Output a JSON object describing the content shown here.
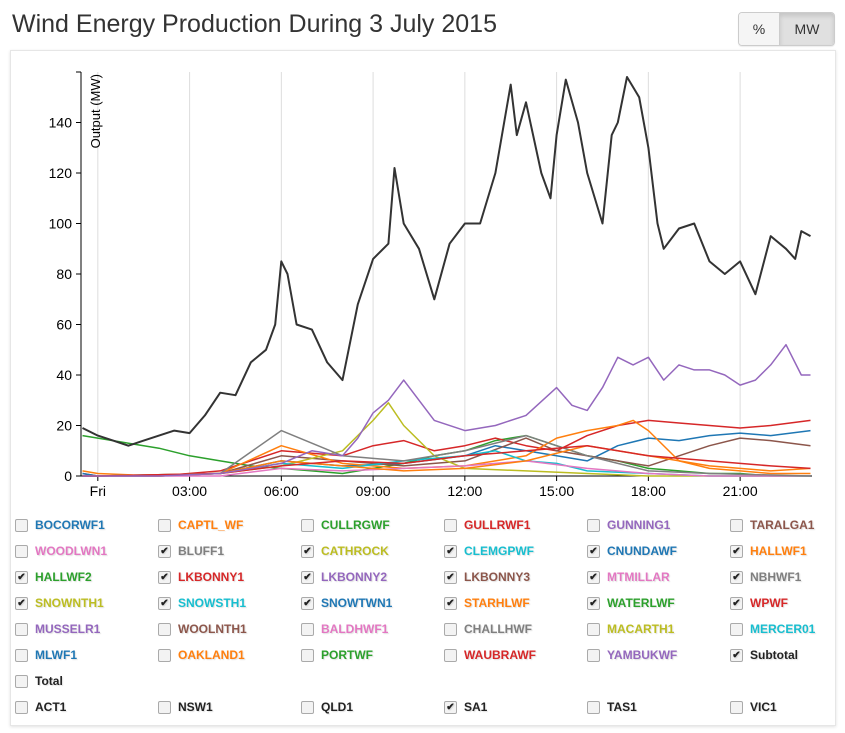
{
  "title": "Wind Energy Production During 3 July 2015",
  "units_toggle": {
    "percent": "%",
    "mw": "MW",
    "selected": "MW"
  },
  "chart_data": {
    "type": "line",
    "ylabel": "Output (MW)",
    "ylim": [
      0,
      160
    ],
    "xlim_hours": [
      -0.55,
      23.35
    ],
    "yticks": [
      0,
      20,
      40,
      60,
      80,
      100,
      120,
      140
    ],
    "xticks": [
      {
        "h": 0,
        "label": "Fri"
      },
      {
        "h": 3,
        "label": "03:00"
      },
      {
        "h": 6,
        "label": "06:00"
      },
      {
        "h": 9,
        "label": "09:00"
      },
      {
        "h": 12,
        "label": "12:00"
      },
      {
        "h": 15,
        "label": "15:00"
      },
      {
        "h": 18,
        "label": "18:00"
      },
      {
        "h": 21,
        "label": "21:00"
      }
    ],
    "grid": true,
    "series": [
      {
        "name": "HALLWF2",
        "color": "#2ca02c",
        "x": [
          -0.5,
          0,
          1,
          2,
          3,
          4,
          5,
          6,
          7,
          8,
          9,
          10,
          11,
          12,
          13,
          14,
          15,
          16,
          17,
          18,
          19,
          20,
          21,
          22,
          23.3
        ],
        "y": [
          16,
          15,
          13,
          11,
          8,
          6,
          4,
          3,
          2,
          1,
          3,
          5,
          8,
          10,
          14,
          16,
          12,
          8,
          6,
          3,
          2,
          1,
          1,
          0,
          0
        ]
      },
      {
        "name": "WPWF",
        "color": "#d62728",
        "x": [
          -0.5,
          0,
          2,
          4,
          6,
          8,
          9,
          10,
          11,
          12,
          13,
          14,
          15,
          16,
          17,
          18,
          19,
          20,
          21,
          22,
          23.3
        ],
        "y": [
          1,
          0,
          0,
          2,
          10,
          8,
          12,
          14,
          10,
          12,
          15,
          12,
          10,
          16,
          20,
          22,
          21,
          20,
          19,
          20,
          22
        ]
      },
      {
        "name": "SNOWTWN1",
        "color": "#1f77b4",
        "x": [
          -0.5,
          0,
          2,
          4,
          6,
          8,
          10,
          12,
          13,
          14,
          15,
          16,
          17,
          18,
          19,
          20,
          21,
          22,
          23.3
        ],
        "y": [
          1,
          0,
          0,
          1,
          6,
          4,
          5,
          8,
          12,
          10,
          8,
          6,
          12,
          15,
          14,
          16,
          17,
          16,
          18
        ]
      },
      {
        "name": "LKBONNY3",
        "color": "#8c564b",
        "x": [
          -0.5,
          0,
          2,
          4,
          6,
          8,
          10,
          12,
          14,
          15,
          16,
          17,
          18,
          19,
          20,
          21,
          22,
          23.3
        ],
        "y": [
          0,
          0,
          0,
          1,
          8,
          6,
          4,
          6,
          15,
          10,
          8,
          6,
          4,
          8,
          12,
          15,
          14,
          12
        ]
      },
      {
        "name": "STARHLWF",
        "color": "#ff7f0e",
        "x": [
          -0.5,
          0,
          2,
          4,
          6,
          8,
          10,
          12,
          14,
          15,
          16,
          17,
          17.5,
          18,
          19,
          20,
          21,
          22,
          23.3
        ],
        "y": [
          2,
          1,
          0,
          1,
          12,
          5,
          3,
          4,
          8,
          15,
          18,
          20,
          22,
          18,
          6,
          3,
          2,
          1,
          1
        ]
      },
      {
        "name": "SNOWNTH1",
        "color": "#bcbd22",
        "x": [
          -0.5,
          0,
          2,
          4,
          6,
          8,
          9,
          9.5,
          10,
          11,
          12,
          14,
          16,
          18,
          20,
          22,
          23.3
        ],
        "y": [
          0,
          0,
          0,
          1,
          4,
          10,
          22,
          29,
          20,
          8,
          3,
          2,
          1,
          0,
          0,
          0,
          0
        ]
      },
      {
        "name": "CLEMGPWF",
        "color": "#17becf",
        "x": [
          -0.5,
          0,
          4,
          6,
          8,
          10,
          12,
          13,
          14,
          15,
          16,
          18,
          20,
          23.3
        ],
        "y": [
          0,
          0,
          1,
          5,
          3,
          6,
          8,
          10,
          6,
          5,
          2,
          1,
          0,
          0
        ]
      },
      {
        "name": "MTMILLAR",
        "color": "#e377c2",
        "x": [
          -0.5,
          0,
          4,
          6,
          8,
          10,
          12,
          14,
          16,
          18,
          20,
          23.3
        ],
        "y": [
          0,
          0,
          0,
          3,
          2,
          3,
          4,
          6,
          3,
          1,
          0,
          0
        ]
      },
      {
        "name": "NBHWF1",
        "color": "#7f7f7f",
        "x": [
          -0.5,
          0,
          4,
          6,
          8,
          10,
          12,
          14,
          15,
          16,
          17,
          18,
          20,
          23.3
        ],
        "y": [
          0,
          0,
          1,
          18,
          8,
          6,
          10,
          16,
          12,
          8,
          5,
          2,
          1,
          0
        ]
      },
      {
        "name": "HALLWF1",
        "color": "#ff7f0e",
        "x": [
          -0.5,
          0,
          4,
          6,
          8,
          10,
          12,
          14,
          16,
          18,
          20,
          22,
          23.3
        ],
        "y": [
          0,
          0,
          1,
          6,
          4,
          2,
          3,
          6,
          12,
          8,
          4,
          2,
          3
        ]
      },
      {
        "name": "LKBONNY1",
        "color": "#d62728",
        "x": [
          -0.5,
          0,
          4,
          6,
          8,
          10,
          12,
          14,
          16,
          18,
          20,
          22,
          23.3
        ],
        "y": [
          0,
          0,
          1,
          4,
          6,
          5,
          8,
          10,
          12,
          8,
          6,
          4,
          3
        ]
      },
      {
        "name": "LKBONNY2",
        "color": "#9467bd",
        "x": [
          -0.5,
          0,
          2,
          4,
          6,
          7,
          8,
          8.5,
          9,
          9.5,
          10,
          11,
          12,
          13,
          14,
          15,
          15.5,
          16,
          16.5,
          17,
          17.5,
          18,
          18.5,
          19,
          19.5,
          20,
          20.5,
          21,
          21.5,
          22,
          22.5,
          23,
          23.3
        ],
        "y": [
          0,
          0,
          0,
          1,
          5,
          10,
          8,
          15,
          25,
          30,
          38,
          22,
          18,
          20,
          24,
          35,
          28,
          26,
          35,
          47,
          44,
          47,
          38,
          44,
          42,
          42,
          40,
          36,
          38,
          44,
          52,
          40,
          40
        ]
      },
      {
        "name": "Subtotal",
        "color": "#333333",
        "width": 2,
        "x": [
          -0.5,
          0,
          0.5,
          1,
          1.5,
          2,
          2.5,
          3,
          3.5,
          4,
          4.5,
          5,
          5.5,
          5.8,
          6,
          6.2,
          6.5,
          7,
          7.5,
          8,
          8.5,
          9,
          9.5,
          9.7,
          10,
          10.5,
          11,
          11.5,
          12,
          12.5,
          13,
          13.5,
          13.7,
          14,
          14.5,
          14.8,
          15,
          15.3,
          15.7,
          16,
          16.5,
          16.8,
          17,
          17.3,
          17.7,
          18,
          18.3,
          18.5,
          19,
          19.5,
          20,
          20.5,
          21,
          21.5,
          22,
          22.5,
          22.8,
          23,
          23.3
        ],
        "y": [
          19,
          16,
          14,
          12,
          14,
          16,
          18,
          17,
          24,
          33,
          32,
          45,
          50,
          60,
          85,
          80,
          60,
          58,
          45,
          38,
          68,
          86,
          92,
          122,
          100,
          90,
          70,
          92,
          100,
          100,
          120,
          155,
          135,
          148,
          120,
          110,
          135,
          157,
          140,
          120,
          100,
          135,
          140,
          158,
          150,
          130,
          100,
          90,
          98,
          100,
          85,
          80,
          85,
          72,
          95,
          90,
          86,
          97,
          95
        ]
      }
    ]
  },
  "legend": [
    {
      "label": "BOCORWF1",
      "color": "#1f77b4",
      "checked": false
    },
    {
      "label": "CAPTL_WF",
      "color": "#ff7f0e",
      "checked": false
    },
    {
      "label": "CULLRGWF",
      "color": "#2ca02c",
      "checked": false
    },
    {
      "label": "GULLRWF1",
      "color": "#d62728",
      "checked": false
    },
    {
      "label": "GUNNING1",
      "color": "#9467bd",
      "checked": false
    },
    {
      "label": "TARALGA1",
      "color": "#8c564b",
      "checked": false
    },
    {
      "label": "WOODLWN1",
      "color": "#e377c2",
      "checked": false
    },
    {
      "label": "BLUFF1",
      "color": "#7f7f7f",
      "checked": true
    },
    {
      "label": "CATHROCK",
      "color": "#bcbd22",
      "checked": true
    },
    {
      "label": "CLEMGPWF",
      "color": "#17becf",
      "checked": true
    },
    {
      "label": "CNUNDAWF",
      "color": "#1f77b4",
      "checked": true
    },
    {
      "label": "HALLWF1",
      "color": "#ff7f0e",
      "checked": true
    },
    {
      "label": "HALLWF2",
      "color": "#2ca02c",
      "checked": true
    },
    {
      "label": "LKBONNY1",
      "color": "#d62728",
      "checked": true
    },
    {
      "label": "LKBONNY2",
      "color": "#9467bd",
      "checked": true
    },
    {
      "label": "LKBONNY3",
      "color": "#8c564b",
      "checked": true
    },
    {
      "label": "MTMILLAR",
      "color": "#e377c2",
      "checked": true
    },
    {
      "label": "NBHWF1",
      "color": "#7f7f7f",
      "checked": true
    },
    {
      "label": "SNOWNTH1",
      "color": "#bcbd22",
      "checked": true
    },
    {
      "label": "SNOWSTH1",
      "color": "#17becf",
      "checked": true
    },
    {
      "label": "SNOWTWN1",
      "color": "#1f77b4",
      "checked": true
    },
    {
      "label": "STARHLWF",
      "color": "#ff7f0e",
      "checked": true
    },
    {
      "label": "WATERLWF",
      "color": "#2ca02c",
      "checked": true
    },
    {
      "label": "WPWF",
      "color": "#d62728",
      "checked": true
    },
    {
      "label": "MUSSELR1",
      "color": "#9467bd",
      "checked": false
    },
    {
      "label": "WOOLNTH1",
      "color": "#8c564b",
      "checked": false
    },
    {
      "label": "BALDHWF1",
      "color": "#e377c2",
      "checked": false
    },
    {
      "label": "CHALLHWF",
      "color": "#7f7f7f",
      "checked": false
    },
    {
      "label": "MACARTH1",
      "color": "#bcbd22",
      "checked": false
    },
    {
      "label": "MERCER01",
      "color": "#17becf",
      "checked": false
    },
    {
      "label": "MLWF1",
      "color": "#1f77b4",
      "checked": false
    },
    {
      "label": "OAKLAND1",
      "color": "#ff7f0e",
      "checked": false
    },
    {
      "label": "PORTWF",
      "color": "#2ca02c",
      "checked": false
    },
    {
      "label": "WAUBRAWF",
      "color": "#d62728",
      "checked": false
    },
    {
      "label": "YAMBUKWF",
      "color": "#9467bd",
      "checked": false
    },
    {
      "label": "Subtotal",
      "color": "#222222",
      "checked": true
    },
    {
      "label": "Total",
      "color": "#222222",
      "checked": false
    }
  ],
  "regions": [
    {
      "label": "ACT1",
      "checked": false
    },
    {
      "label": "NSW1",
      "checked": false
    },
    {
      "label": "QLD1",
      "checked": false
    },
    {
      "label": "SA1",
      "checked": true
    },
    {
      "label": "TAS1",
      "checked": false
    },
    {
      "label": "VIC1",
      "checked": false
    }
  ]
}
